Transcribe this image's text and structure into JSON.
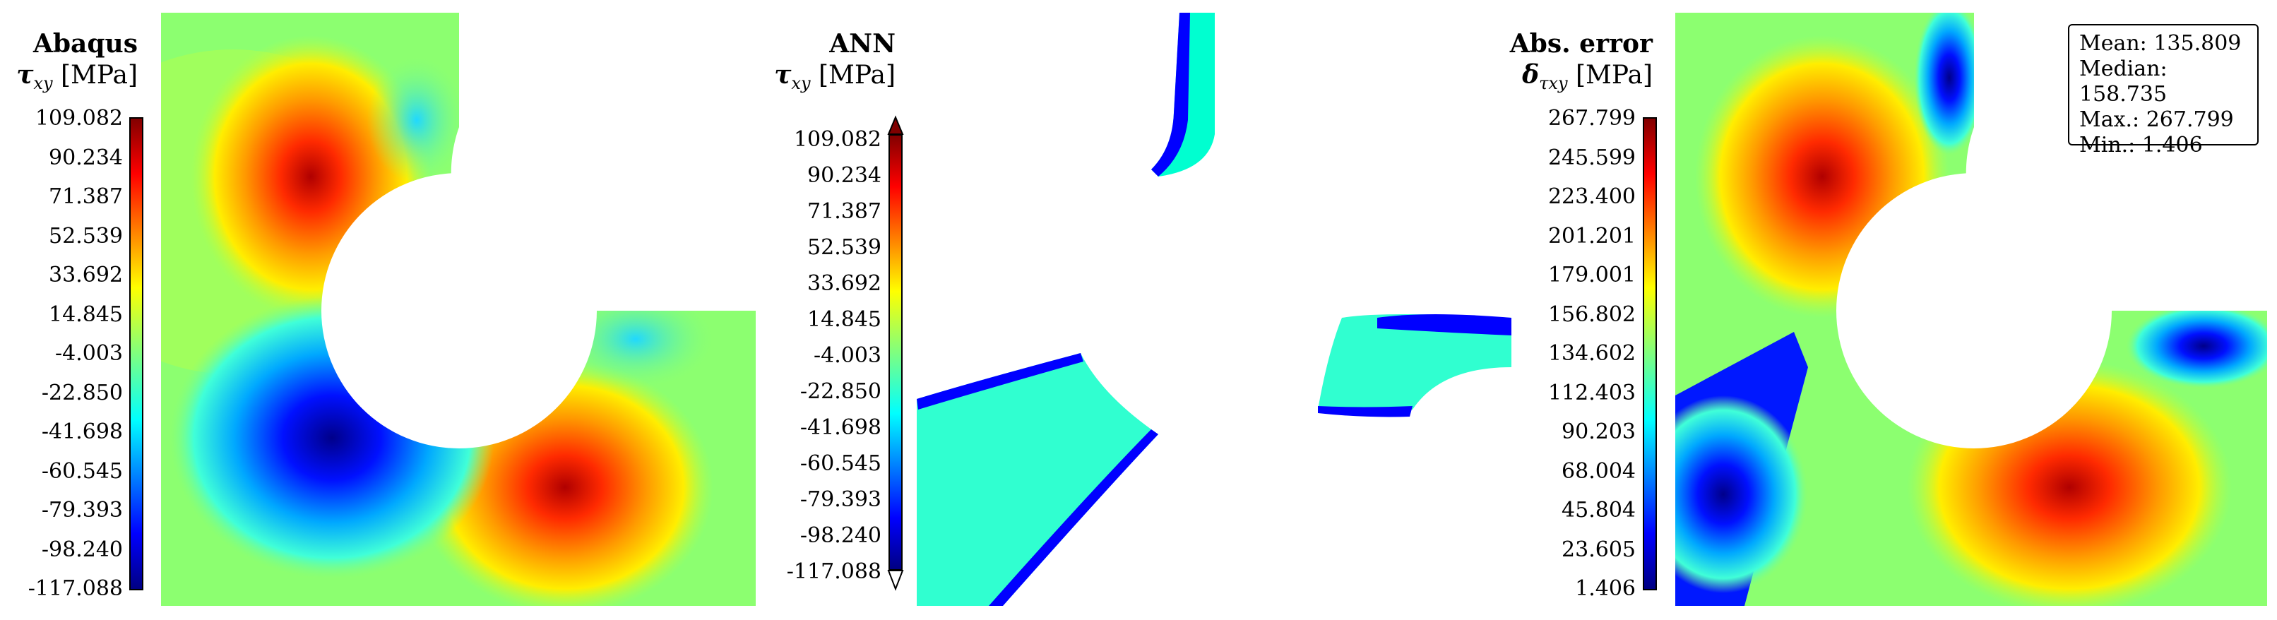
{
  "panels": [
    {
      "title": "Abaqus",
      "quantity": "τ",
      "quantity_sub": "xy",
      "unit": "[MPa]",
      "ticks": [
        "109.082",
        "90.234",
        "71.387",
        "52.539",
        "33.692",
        "14.845",
        "-4.003",
        "-22.850",
        "-41.698",
        "-60.545",
        "-79.393",
        "-98.240",
        "-117.088"
      ]
    },
    {
      "title": "ANN",
      "quantity": "τ",
      "quantity_sub": "xy",
      "unit": "[MPa]",
      "ticks": [
        "109.082",
        "90.234",
        "71.387",
        "52.539",
        "33.692",
        "14.845",
        "-4.003",
        "-22.850",
        "-41.698",
        "-60.545",
        "-79.393",
        "-98.240",
        "-117.088"
      ]
    },
    {
      "title": "Abs. error",
      "quantity": "δ",
      "quantity_sub": "τxy",
      "unit": "[MPa]",
      "ticks": [
        "267.799",
        "245.599",
        "223.400",
        "201.201",
        "179.001",
        "156.802",
        "134.602",
        "112.403",
        "90.203",
        "68.004",
        "45.804",
        "23.605",
        "1.406"
      ]
    }
  ],
  "stats": {
    "mean": "Mean: 135.809",
    "median": "Median: 158.735",
    "max": "Max.: 267.799",
    "min": "Min.: 1.406"
  },
  "colors": {
    "jet_low": "#00007f",
    "jet_mid": "#7fff7f",
    "jet_high": "#7f0000",
    "background": "#ffffff"
  }
}
